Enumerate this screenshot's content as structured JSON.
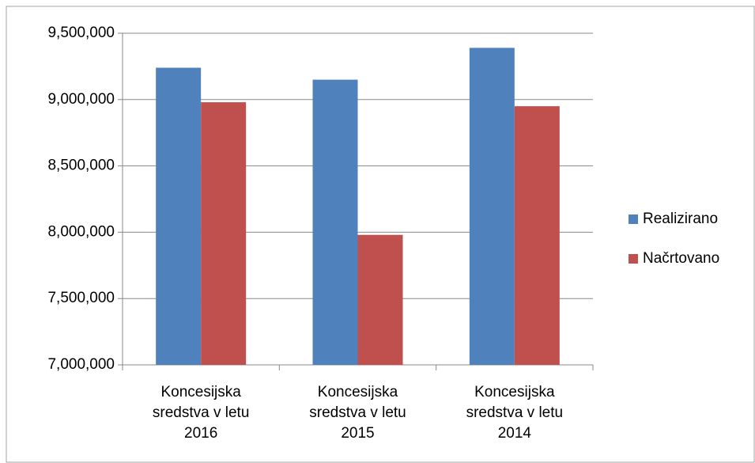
{
  "chart_data": {
    "type": "bar",
    "categories": [
      "Koncesijska sredstva v letu 2016",
      "Koncesijska sredstva v letu 2015",
      "Koncesijska sredstva v letu 2014"
    ],
    "series": [
      {
        "name": "Realizirano",
        "color": "#4f81bd",
        "values": [
          9240000,
          9150000,
          9390000
        ]
      },
      {
        "name": "Načrtovano",
        "color": "#c0504d",
        "values": [
          8980000,
          7980000,
          8950000
        ]
      }
    ],
    "ylim": [
      7000000,
      9500000
    ],
    "yticks": [
      {
        "value": 7000000,
        "label": "7,000,000"
      },
      {
        "value": 7500000,
        "label": "7,500,000"
      },
      {
        "value": 8000000,
        "label": "8,000,000"
      },
      {
        "value": 8500000,
        "label": "8,500,000"
      },
      {
        "value": 9000000,
        "label": "9,000,000"
      },
      {
        "value": 9500000,
        "label": "9,500,000"
      }
    ],
    "grid": true,
    "legend": "right"
  }
}
